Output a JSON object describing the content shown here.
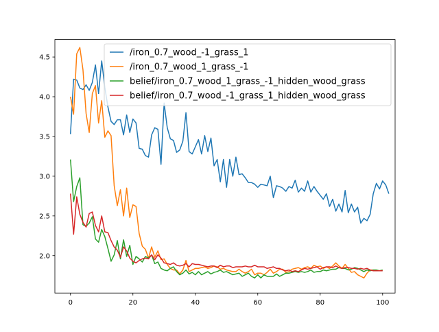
{
  "chart_data": {
    "type": "line",
    "title": "",
    "xlabel": "",
    "ylabel": "",
    "xlim": [
      -5,
      104
    ],
    "ylim": [
      1.53,
      4.72
    ],
    "xticks": [
      "0",
      "20",
      "40",
      "60",
      "80",
      "100"
    ],
    "yticks": [
      "2.0",
      "2.5",
      "3.0",
      "3.5",
      "4.0",
      "4.5"
    ],
    "xtick_values": [
      0,
      20,
      40,
      60,
      80,
      100
    ],
    "ytick_values": [
      2.0,
      2.5,
      3.0,
      3.5,
      4.0,
      4.5
    ],
    "grid": false,
    "legend_position": "top-right",
    "series": [
      {
        "name": "/iron_0.7_wood_-1_grass_1",
        "color": "#1f77b4",
        "values": [
          3.53,
          4.22,
          4.21,
          4.11,
          4.09,
          4.15,
          4.08,
          4.18,
          4.4,
          4.04,
          4.45,
          4.12,
          3.87,
          3.69,
          3.65,
          3.71,
          3.71,
          3.52,
          3.77,
          3.55,
          3.72,
          3.67,
          3.35,
          3.34,
          3.26,
          3.24,
          3.52,
          3.61,
          3.59,
          3.15,
          3.92,
          3.61,
          3.47,
          3.45,
          3.3,
          3.33,
          3.44,
          3.8,
          3.31,
          3.28,
          3.37,
          3.46,
          3.28,
          3.51,
          3.31,
          3.48,
          3.13,
          3.21,
          2.93,
          3.21,
          2.86,
          3.21,
          3.0,
          3.24,
          3.02,
          3.03,
          2.98,
          2.92,
          2.92,
          2.9,
          2.86,
          2.9,
          2.89,
          2.88,
          3.0,
          2.73,
          2.88,
          2.87,
          2.85,
          2.81,
          2.87,
          2.85,
          2.95,
          2.8,
          2.85,
          2.81,
          2.94,
          2.8,
          2.87,
          2.81,
          2.76,
          2.71,
          2.78,
          2.62,
          2.71,
          2.56,
          2.65,
          2.55,
          2.82,
          2.54,
          2.65,
          2.55,
          2.61,
          2.41,
          2.47,
          2.44,
          2.52,
          2.78,
          2.91,
          2.84,
          2.94,
          2.89,
          2.78
        ]
      },
      {
        "name": "/iron_0.7_wood_1_grass_-1",
        "color": "#ff7f0e",
        "values": [
          4.0,
          3.78,
          4.54,
          4.62,
          4.34,
          3.79,
          3.55,
          4.04,
          4.14,
          3.67,
          3.95,
          3.49,
          3.57,
          3.51,
          2.88,
          2.63,
          2.83,
          2.5,
          2.85,
          2.48,
          2.64,
          2.62,
          2.28,
          2.12,
          2.08,
          1.97,
          2.11,
          1.98,
          2.06,
          1.95,
          1.96,
          1.89,
          1.84,
          1.82,
          1.82,
          1.77,
          1.82,
          1.94,
          1.8,
          1.82,
          1.84,
          1.84,
          1.85,
          1.86,
          1.84,
          1.85,
          1.87,
          1.86,
          1.83,
          1.84,
          1.82,
          1.81,
          1.8,
          1.8,
          1.83,
          1.8,
          1.78,
          1.8,
          1.83,
          1.76,
          1.78,
          1.78,
          1.76,
          1.79,
          1.83,
          1.78,
          1.8,
          1.83,
          1.83,
          1.79,
          1.8,
          1.83,
          1.84,
          1.85,
          1.83,
          1.85,
          1.86,
          1.84,
          1.88,
          1.86,
          1.87,
          1.84,
          1.86,
          1.84,
          1.87,
          1.91,
          1.87,
          1.84,
          1.89,
          1.84,
          1.79,
          1.8,
          1.76,
          1.74,
          1.72,
          1.78,
          1.82,
          1.82,
          1.82,
          1.81,
          1.82
        ]
      },
      {
        "name": "belief/iron_0.7_wood_1_grass_-1_hidden_wood_grass",
        "color": "#2ca02c",
        "values": [
          3.21,
          2.68,
          2.87,
          2.98,
          2.39,
          2.37,
          2.41,
          2.49,
          2.21,
          2.17,
          2.33,
          2.24,
          2.09,
          1.93,
          2.01,
          2.19,
          1.96,
          2.2,
          1.99,
          2.13,
          1.89,
          1.99,
          1.96,
          1.92,
          1.99,
          1.97,
          2.01,
          1.9,
          1.92,
          1.84,
          1.82,
          1.81,
          1.84,
          1.86,
          1.8,
          1.76,
          1.78,
          1.82,
          1.77,
          1.79,
          1.76,
          1.8,
          1.76,
          1.78,
          1.8,
          1.77,
          1.79,
          1.8,
          1.82,
          1.79,
          1.8,
          1.78,
          1.76,
          1.77,
          1.78,
          1.74,
          1.76,
          1.78,
          1.74,
          1.72,
          1.76,
          1.72,
          1.76,
          1.74,
          1.74,
          1.74,
          1.77,
          1.74,
          1.76,
          1.78,
          1.78,
          1.79,
          1.8,
          1.79,
          1.8,
          1.79,
          1.8,
          1.82,
          1.79,
          1.8,
          1.8,
          1.82,
          1.81,
          1.82,
          1.83,
          1.83,
          1.85,
          1.84,
          1.84,
          1.82,
          1.83,
          1.85,
          1.84,
          1.82,
          1.8,
          1.82,
          1.81,
          1.82,
          1.82,
          1.81,
          1.82
        ]
      },
      {
        "name": "belief/iron_0.7_wood_-1_grass_1_hidden_wood_grass",
        "color": "#d62728",
        "values": [
          2.78,
          2.27,
          2.74,
          2.52,
          2.42,
          2.36,
          2.53,
          2.55,
          2.38,
          2.3,
          2.5,
          2.3,
          2.29,
          2.19,
          2.11,
          2.07,
          1.98,
          2.11,
          2.06,
          1.97,
          1.93,
          1.91,
          1.94,
          1.96,
          1.97,
          1.96,
          2.01,
          1.95,
          2.01,
          1.97,
          1.91,
          1.9,
          1.89,
          1.91,
          1.88,
          1.87,
          1.88,
          1.9,
          1.86,
          1.9,
          1.89,
          1.89,
          1.88,
          1.87,
          1.86,
          1.87,
          1.87,
          1.85,
          1.88,
          1.86,
          1.87,
          1.87,
          1.85,
          1.86,
          1.86,
          1.86,
          1.87,
          1.86,
          1.86,
          1.88,
          1.86,
          1.86,
          1.86,
          1.84,
          1.85,
          1.86,
          1.84,
          1.84,
          1.82,
          1.81,
          1.82,
          1.8,
          1.81,
          1.8,
          1.82,
          1.84,
          1.83,
          1.84,
          1.85,
          1.86,
          1.83,
          1.85,
          1.86,
          1.86,
          1.85,
          1.87,
          1.85,
          1.84,
          1.85,
          1.85,
          1.84,
          1.84,
          1.83,
          1.84,
          1.83,
          1.84,
          1.82,
          1.81,
          1.81,
          1.81,
          1.81
        ]
      }
    ]
  }
}
